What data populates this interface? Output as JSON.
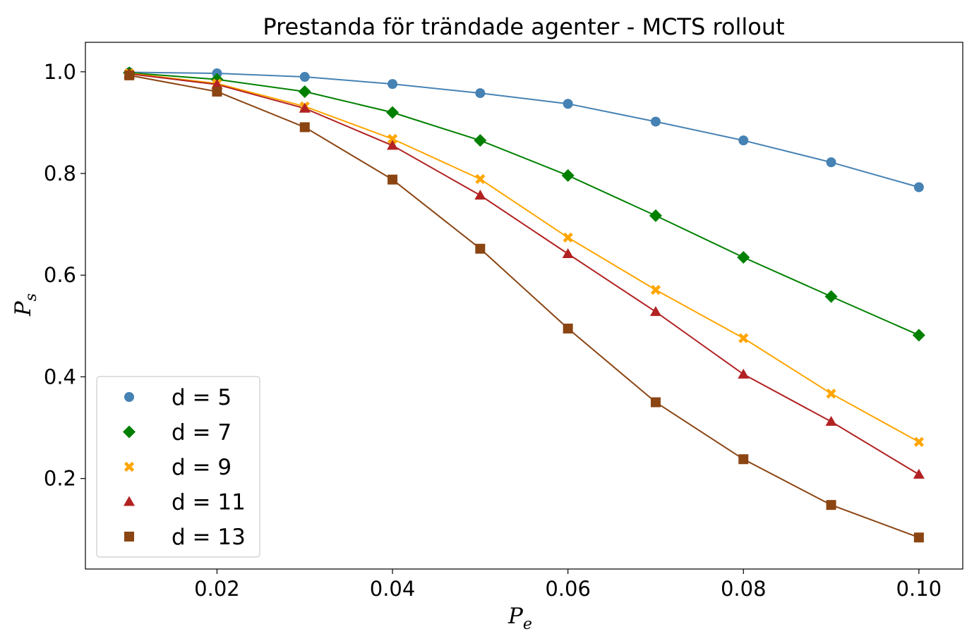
{
  "chart_data": {
    "type": "line",
    "title": "Prestanda för trändade agenter - MCTS rollout",
    "xlabel": {
      "base": "P",
      "sub": "e"
    },
    "ylabel": {
      "base": "P",
      "sub": "s"
    },
    "xlim": [
      0.005,
      0.105
    ],
    "ylim": [
      0.022,
      1.058
    ],
    "xticks": [
      0.02,
      0.04,
      0.06,
      0.08,
      0.1
    ],
    "xtick_labels": [
      "0.02",
      "0.04",
      "0.06",
      "0.08",
      "0.10"
    ],
    "yticks": [
      0.2,
      0.4,
      0.6,
      0.8,
      1.0
    ],
    "ytick_labels": [
      "0.2",
      "0.4",
      "0.6",
      "0.8",
      "1.0"
    ],
    "grid": false,
    "legend_position": "lower-left",
    "x": [
      0.01,
      0.02,
      0.03,
      0.04,
      0.05,
      0.06,
      0.07,
      0.08,
      0.09,
      0.1
    ],
    "series": [
      {
        "name": "d = 5",
        "marker": "circle",
        "color": "#4682b4",
        "values": [
          0.999,
          0.997,
          0.99,
          0.976,
          0.958,
          0.937,
          0.902,
          0.865,
          0.822,
          0.773
        ]
      },
      {
        "name": "d = 7",
        "marker": "diamond",
        "color": "#008000",
        "values": [
          0.998,
          0.985,
          0.961,
          0.92,
          0.865,
          0.796,
          0.717,
          0.635,
          0.558,
          0.482
        ]
      },
      {
        "name": "d = 9",
        "marker": "x",
        "color": "#ffa500",
        "values": [
          0.997,
          0.977,
          0.932,
          0.868,
          0.789,
          0.674,
          0.571,
          0.476,
          0.367,
          0.272
        ]
      },
      {
        "name": "d = 11",
        "marker": "triangle",
        "color": "#b22222",
        "values": [
          0.996,
          0.975,
          0.928,
          0.855,
          0.757,
          0.642,
          0.528,
          0.405,
          0.312,
          0.208
        ]
      },
      {
        "name": "d = 13",
        "marker": "square",
        "color": "#8b4513",
        "values": [
          0.993,
          0.961,
          0.891,
          0.788,
          0.652,
          0.495,
          0.35,
          0.238,
          0.148,
          0.084
        ]
      }
    ]
  }
}
